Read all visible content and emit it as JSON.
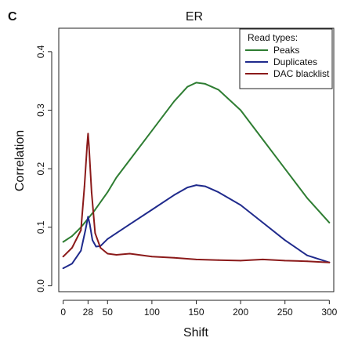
{
  "panel_label": "C",
  "chart_data": {
    "type": "line",
    "title": "ER",
    "xlabel": "Shift",
    "ylabel": "Correlation",
    "xlim": [
      -5,
      305
    ],
    "ylim": [
      -0.01,
      0.44
    ],
    "x_ticks": [
      0,
      28,
      50,
      100,
      150,
      200,
      250,
      300
    ],
    "x_tick_labels": [
      "0",
      "28",
      "50",
      "100",
      "150",
      "200",
      "250",
      "300"
    ],
    "y_ticks": [
      0.0,
      0.1,
      0.2,
      0.3,
      0.4
    ],
    "y_tick_labels": [
      "0.0",
      "0.1",
      "0.2",
      "0.3",
      "0.4"
    ],
    "grid": false,
    "legend": {
      "title": "Read types:",
      "placement": "top-right"
    },
    "series": [
      {
        "name": "Peaks",
        "color": "#2e7d32",
        "x": [
          0,
          10,
          20,
          28,
          35,
          50,
          60,
          75,
          100,
          125,
          140,
          150,
          160,
          175,
          200,
          225,
          250,
          275,
          300
        ],
        "y": [
          0.075,
          0.085,
          0.1,
          0.115,
          0.128,
          0.16,
          0.185,
          0.215,
          0.265,
          0.315,
          0.34,
          0.347,
          0.345,
          0.335,
          0.3,
          0.25,
          0.2,
          0.15,
          0.108
        ]
      },
      {
        "name": "Duplicates",
        "color": "#1f2a8c",
        "x": [
          0,
          10,
          20,
          25,
          28,
          30,
          33,
          37,
          42,
          50,
          60,
          75,
          100,
          125,
          140,
          150,
          160,
          175,
          200,
          225,
          250,
          275,
          300
        ],
        "y": [
          0.03,
          0.038,
          0.06,
          0.095,
          0.118,
          0.105,
          0.078,
          0.067,
          0.068,
          0.08,
          0.09,
          0.105,
          0.13,
          0.155,
          0.168,
          0.172,
          0.17,
          0.16,
          0.138,
          0.108,
          0.078,
          0.052,
          0.04
        ]
      },
      {
        "name": "DAC blacklist",
        "color": "#8b1a1a",
        "x": [
          0,
          10,
          20,
          24,
          27,
          28,
          29,
          32,
          36,
          42,
          50,
          60,
          75,
          100,
          125,
          150,
          175,
          200,
          225,
          250,
          275,
          300
        ],
        "y": [
          0.05,
          0.065,
          0.095,
          0.17,
          0.24,
          0.26,
          0.24,
          0.16,
          0.09,
          0.065,
          0.055,
          0.053,
          0.055,
          0.05,
          0.048,
          0.045,
          0.044,
          0.043,
          0.045,
          0.043,
          0.042,
          0.04
        ]
      }
    ]
  }
}
